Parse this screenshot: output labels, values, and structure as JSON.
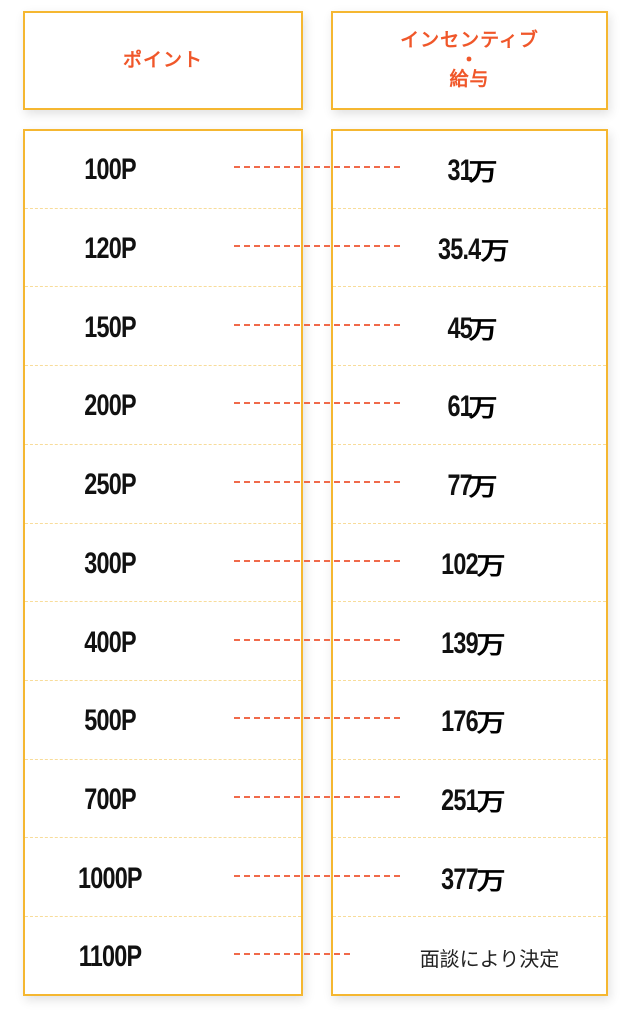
{
  "header": {
    "points_label": "ポイント",
    "incentive_label_1": "インセンティブ",
    "incentive_label_2": "・",
    "incentive_label_3": "給与"
  },
  "rows": [
    {
      "points": "100P",
      "amount": "31",
      "unit": "万"
    },
    {
      "points": "120P",
      "amount": "35.4",
      "unit": "万"
    },
    {
      "points": "150P",
      "amount": "45",
      "unit": "万"
    },
    {
      "points": "200P",
      "amount": "61",
      "unit": "万"
    },
    {
      "points": "250P",
      "amount": "77",
      "unit": "万"
    },
    {
      "points": "300P",
      "amount": "102",
      "unit": "万"
    },
    {
      "points": "400P",
      "amount": "139",
      "unit": "万"
    },
    {
      "points": "500P",
      "amount": "176",
      "unit": "万"
    },
    {
      "points": "700P",
      "amount": "251",
      "unit": "万"
    },
    {
      "points": "1000P",
      "amount": "377",
      "unit": "万"
    },
    {
      "points": "1100P",
      "text": "面談により決定"
    }
  ],
  "colors": {
    "border": "#f5b731",
    "accent": "#f0572a",
    "connector": "#f06a4a"
  }
}
